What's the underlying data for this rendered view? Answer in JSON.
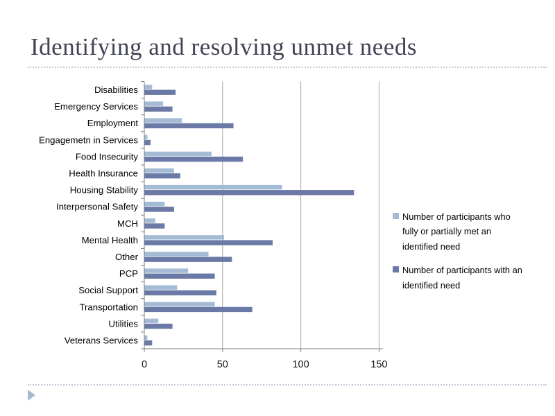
{
  "slide": {
    "title": "Identifying and resolving unmet needs"
  },
  "legend": {
    "items": [
      {
        "label": "Number of participants who fully or partially met an identified need",
        "color": "#a4bbd5"
      },
      {
        "label": "Number of participants with an identified need",
        "color": "#6b79a6"
      }
    ]
  },
  "chart_data": {
    "type": "bar",
    "orientation": "horizontal",
    "title": "",
    "xlabel": "",
    "ylabel": "",
    "xlim": [
      0,
      150
    ],
    "x_ticks": [
      0,
      50,
      100,
      150
    ],
    "grid": "vertical",
    "legend_position": "right",
    "categories": [
      "Disabilities",
      "Emergency Services",
      "Employment",
      "Engagemetn in Services",
      "Food Insecurity",
      "Health Insurance",
      "Housing Stability",
      "Interpersonal Safety",
      "MCH",
      "Mental Health",
      "Other",
      "PCP",
      "Social Support",
      "Transportation",
      "Utilities",
      "Veterans Services"
    ],
    "series": [
      {
        "name": "Number of participants who fully or partially met an identified need",
        "color": "#a4bbd5",
        "values": [
          5,
          12,
          24,
          2,
          43,
          19,
          88,
          13,
          7,
          51,
          41,
          28,
          21,
          45,
          9,
          2
        ]
      },
      {
        "name": "Number of participants with an identified need",
        "color": "#6b79a6",
        "values": [
          20,
          18,
          57,
          4,
          63,
          23,
          134,
          19,
          13,
          82,
          56,
          45,
          46,
          69,
          18,
          5
        ]
      }
    ],
    "colors": {
      "axis": "#7f7f7f",
      "gridline": "#a6a6a6"
    }
  }
}
